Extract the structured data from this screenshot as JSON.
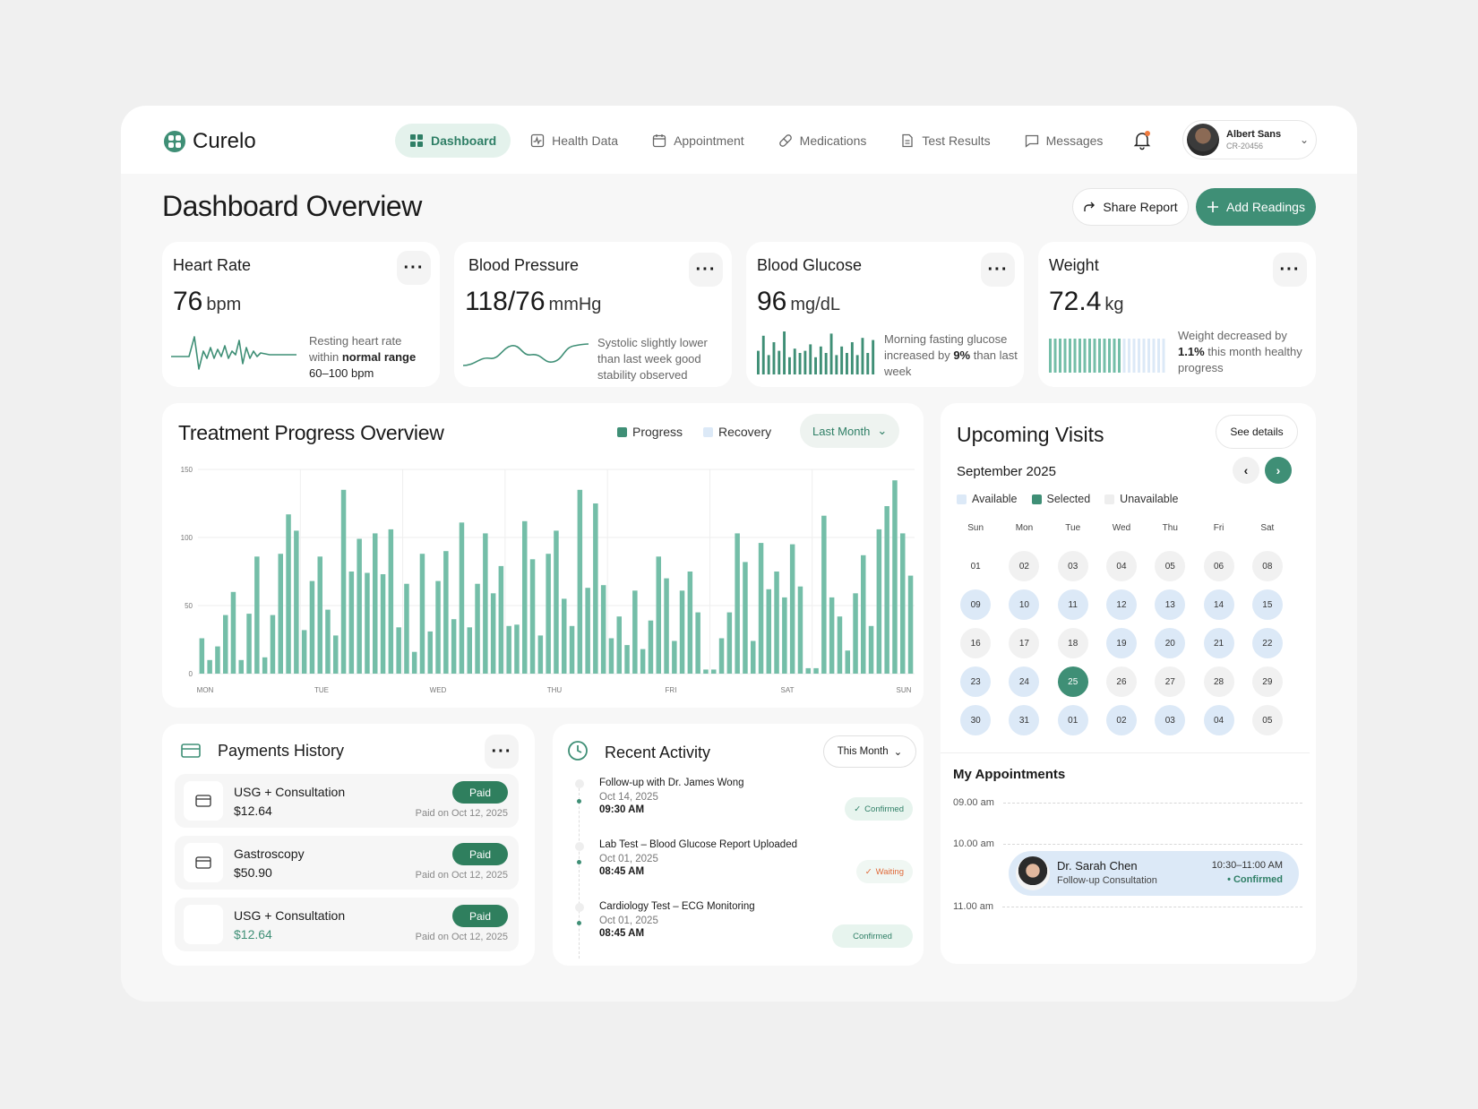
{
  "app": {
    "name": "Curelo"
  },
  "nav": [
    {
      "label": "Dashboard",
      "icon": "grid-icon",
      "active": true
    },
    {
      "label": "Health Data",
      "icon": "activity-icon"
    },
    {
      "label": "Appointment",
      "icon": "calendar-icon"
    },
    {
      "label": "Medications",
      "icon": "pill-icon"
    },
    {
      "label": "Test Results",
      "icon": "document-icon"
    },
    {
      "label": "Messages",
      "icon": "message-icon"
    }
  ],
  "user": {
    "name": "Albert Sans",
    "id": "CR-20456"
  },
  "page": {
    "title": "Dashboard Overview",
    "share_label": "Share Report",
    "add_label": "Add Readings"
  },
  "metrics": {
    "heart": {
      "title": "Heart Rate",
      "value": "76",
      "unit": "bpm",
      "desc_pre": "Resting heart rate within ",
      "desc_bold": "normal range",
      "desc_post": " 60–100 bpm"
    },
    "bp": {
      "title": "Blood Pressure",
      "value": "118/76",
      "unit": "mmHg",
      "desc": "Systolic slightly lower than last week good stability observed"
    },
    "glucose": {
      "title": "Blood Glucose",
      "value": "96",
      "unit": "mg/dL",
      "desc_pre": "Morning fasting glucose increased by ",
      "desc_bold": "9%",
      "desc_post": " than last week",
      "bars": [
        0.55,
        0.9,
        0.45,
        0.75,
        0.55,
        1.0,
        0.4,
        0.6,
        0.5,
        0.55,
        0.7,
        0.4,
        0.65,
        0.5,
        0.95,
        0.45,
        0.65,
        0.5,
        0.75,
        0.45,
        0.85,
        0.5,
        0.8
      ]
    },
    "weight": {
      "title": "Weight",
      "value": "72.4",
      "unit": "kg",
      "desc_bold": "1.1%",
      "desc_pre": "Weight decreased by ",
      "desc_post": " this month healthy progress",
      "ticks_total": 24,
      "ticks_filled": 15
    }
  },
  "treatment": {
    "title": "Treatment Progress Overview",
    "legend_progress": "Progress",
    "legend_recovery": "Recovery",
    "range": "Last Month"
  },
  "chart_data": {
    "type": "bar",
    "y_ticks": [
      "150",
      "100",
      "50",
      "0"
    ],
    "ylim": [
      0,
      150
    ],
    "x_labels": [
      "MON",
      "TUE",
      "WED",
      "THU",
      "FRI",
      "SAT",
      "SUN"
    ],
    "series": [
      {
        "name": "Progress",
        "values": [
          26,
          10,
          20,
          43,
          60,
          10,
          44,
          86,
          12,
          43,
          88,
          117,
          105,
          32,
          68,
          86,
          47,
          28,
          135,
          75,
          99,
          74,
          103,
          73,
          106,
          34,
          66,
          16,
          88,
          31,
          68,
          90,
          40,
          111,
          34,
          66,
          103,
          59,
          79,
          35,
          36,
          112,
          84,
          28,
          88,
          105,
          55,
          35,
          135,
          63,
          125,
          65,
          26,
          42,
          21,
          61,
          18,
          39,
          86,
          70,
          24,
          61,
          75,
          45,
          3,
          3,
          26,
          45,
          103,
          82,
          24,
          96,
          62,
          75,
          56,
          95,
          64,
          4,
          4,
          116,
          56,
          42,
          17,
          59,
          87,
          35,
          106,
          123,
          142,
          103,
          72
        ]
      }
    ]
  },
  "visits": {
    "title": "Upcoming Visits",
    "see_details": "See details",
    "month": "September 2025",
    "legend": [
      "Available",
      "Selected",
      "Unavailable"
    ],
    "weekdays": [
      "Sun",
      "Mon",
      "Tue",
      "Wed",
      "Thu",
      "Fri",
      "Sat"
    ],
    "weeks": [
      [
        {
          "d": "01",
          "s": "plain"
        },
        {
          "d": "02",
          "s": "un"
        },
        {
          "d": "03",
          "s": "un"
        },
        {
          "d": "04",
          "s": "un"
        },
        {
          "d": "05",
          "s": "un"
        },
        {
          "d": "06",
          "s": "un"
        },
        {
          "d": "08",
          "s": "un"
        }
      ],
      [
        {
          "d": "09",
          "s": "av"
        },
        {
          "d": "10",
          "s": "av"
        },
        {
          "d": "11",
          "s": "av"
        },
        {
          "d": "12",
          "s": "av"
        },
        {
          "d": "13",
          "s": "av"
        },
        {
          "d": "14",
          "s": "av"
        },
        {
          "d": "15",
          "s": "av"
        }
      ],
      [
        {
          "d": "16",
          "s": "un"
        },
        {
          "d": "17",
          "s": "un"
        },
        {
          "d": "18",
          "s": "un"
        },
        {
          "d": "19",
          "s": "av"
        },
        {
          "d": "20",
          "s": "av"
        },
        {
          "d": "21",
          "s": "av"
        },
        {
          "d": "22",
          "s": "av"
        }
      ],
      [
        {
          "d": "23",
          "s": "av"
        },
        {
          "d": "24",
          "s": "av"
        },
        {
          "d": "25",
          "s": "sel"
        },
        {
          "d": "26",
          "s": "un"
        },
        {
          "d": "27",
          "s": "un"
        },
        {
          "d": "28",
          "s": "un"
        },
        {
          "d": "29",
          "s": "un"
        }
      ],
      [
        {
          "d": "30",
          "s": "av"
        },
        {
          "d": "31",
          "s": "av"
        },
        {
          "d": "01",
          "s": "av"
        },
        {
          "d": "02",
          "s": "av"
        },
        {
          "d": "03",
          "s": "av"
        },
        {
          "d": "04",
          "s": "av"
        },
        {
          "d": "05",
          "s": "un"
        }
      ]
    ],
    "appointments_title": "My Appointments",
    "times": [
      "09.00 am",
      "10.00 am",
      "11.00 am"
    ],
    "appt": {
      "doctor": "Dr. Sarah Chen",
      "type": "Follow-up Consultation",
      "time": "10:30–11:00 AM",
      "status": "• Confirmed"
    }
  },
  "payments": {
    "title": "Payments History",
    "rows": [
      {
        "name": "USG + Consultation",
        "amount": "$12.64",
        "status": "Paid",
        "date": "Paid on Oct 12, 2025"
      },
      {
        "name": "Gastroscopy",
        "amount": "$50.90",
        "status": "Paid",
        "date": "Paid on Oct 12, 2025"
      },
      {
        "name": "USG + Consultation",
        "amount": "$12.64",
        "status": "Paid",
        "date": "Paid on Oct 12, 2025"
      }
    ]
  },
  "activity": {
    "title": "Recent Activity",
    "range": "This Month",
    "items": [
      {
        "title": "Follow-up with Dr. James Wong",
        "date": "Oct 14, 2025",
        "time": "09:30 AM",
        "status": "Confirmed"
      },
      {
        "title": "Lab Test – Blood Glucose Report Uploaded",
        "date": "Oct 01, 2025",
        "time": "08:45 AM",
        "status": "Waiting"
      },
      {
        "title": "Cardiology Test – ECG Monitoring",
        "date": "Oct 01, 2025",
        "time": "08:45 AM",
        "status": "Confirmed"
      }
    ]
  },
  "colors": {
    "accent": "#3f8f76",
    "bar": "#74bea8",
    "available": "#dce9f7",
    "waiting": "#e06a3a"
  }
}
